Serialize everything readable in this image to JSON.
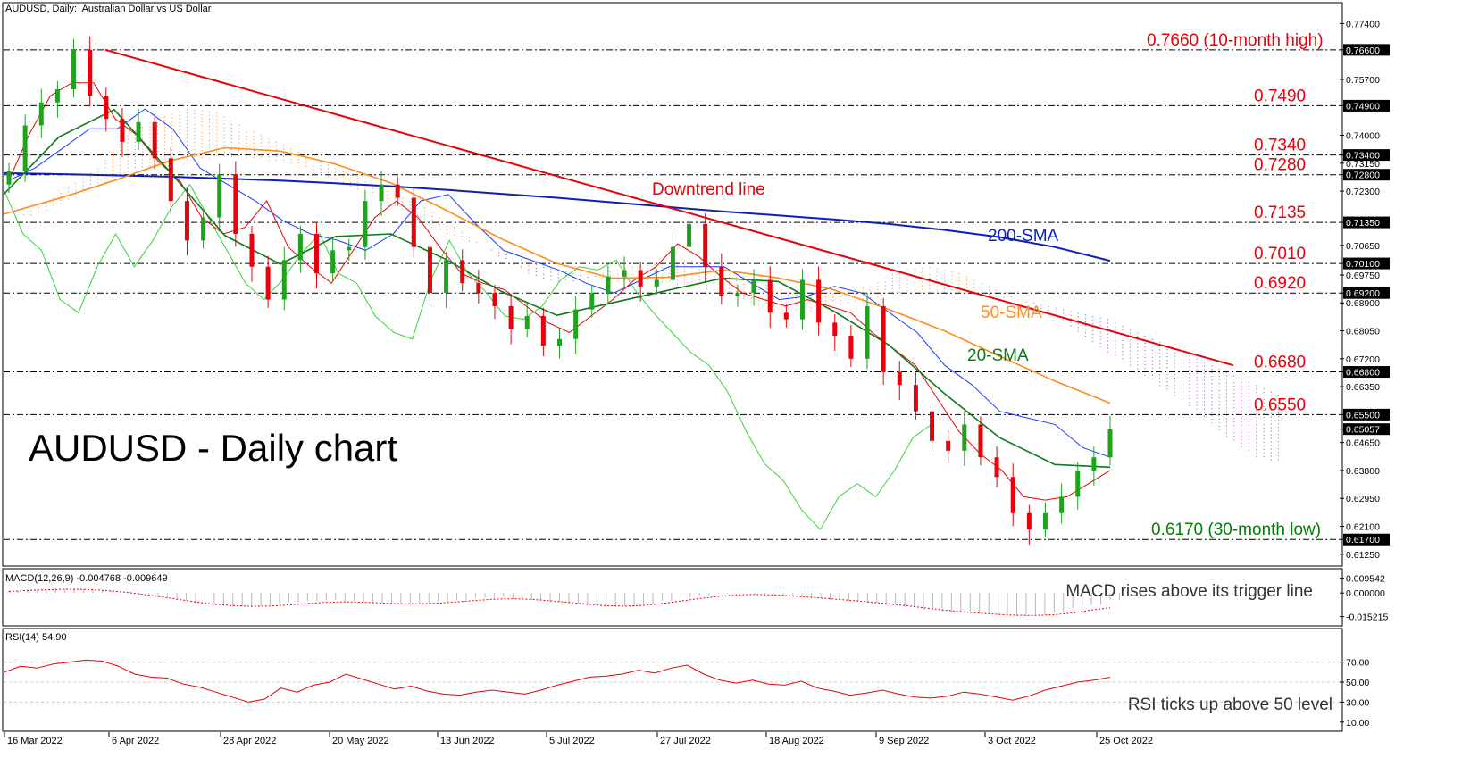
{
  "header": {
    "symbol_line": "AUDUSD, Daily:  Australian Dollar vs US Dollar",
    "big_title": "AUDUSD - Daily chart"
  },
  "chart_data": [
    {
      "type": "line",
      "panel": "price",
      "ylim": [
        0.61,
        0.779
      ],
      "price_ticks": [
        "0.77400",
        "0.76600",
        "0.75700",
        "0.74900",
        "0.74000",
        "0.73400",
        "0.73150",
        "0.72800",
        "0.72300",
        "0.71350",
        "0.70650",
        "0.70100",
        "0.69750",
        "0.69200",
        "0.68900",
        "0.68050",
        "0.67200",
        "0.66800",
        "0.66350",
        "0.65500",
        "0.65057",
        "0.64650",
        "0.63800",
        "0.62950",
        "0.62100",
        "0.61700",
        "0.61250"
      ],
      "highlighted_ticks": [
        "0.76600",
        "0.74900",
        "0.73400",
        "0.72800",
        "0.71350",
        "0.70100",
        "0.69200",
        "0.66800",
        "0.65500",
        "0.65057",
        "0.61700"
      ],
      "date_labels": [
        "16 Mar 2022",
        "6 Apr 2022",
        "28 Apr 2022",
        "20 May 2022",
        "13 Jun 2022",
        "5 Jul 2022",
        "27 Jul 2022",
        "18 Aug 2022",
        "9 Sep 2022",
        "3 Oct 2022",
        "25 Oct 2022"
      ],
      "levels": [
        {
          "value": 0.766,
          "label": "0.7660 (10-month high)",
          "color": "#e8000b"
        },
        {
          "value": 0.749,
          "label": "0.7490",
          "color": "#e8000b"
        },
        {
          "value": 0.734,
          "label": "0.7340",
          "color": "#e8000b"
        },
        {
          "value": 0.728,
          "label": "0.7280",
          "color": "#e8000b"
        },
        {
          "value": 0.7135,
          "label": "0.7135",
          "color": "#e8000b"
        },
        {
          "value": 0.701,
          "label": "0.7010",
          "color": "#e8000b"
        },
        {
          "value": 0.692,
          "label": "0.6920",
          "color": "#e8000b"
        },
        {
          "value": 0.668,
          "label": "0.6680",
          "color": "#e8000b"
        },
        {
          "value": 0.655,
          "label": "0.6550",
          "color": "#e8000b"
        },
        {
          "value": 0.617,
          "label": "0.6170 (30-month low)",
          "color": "#008000"
        }
      ],
      "annotations": {
        "downtrend": "Downtrend line",
        "sma200": "200-SMA",
        "sma50": "50-SMA",
        "sma20": "20-SMA"
      },
      "current_price": 0.65057,
      "downtrend_line": {
        "start": {
          "date": "6 Apr 2022",
          "value": 0.766
        },
        "end": {
          "value": 0.67
        }
      },
      "sma200": [
        0.7285,
        0.7282,
        0.7278,
        0.7274,
        0.7268,
        0.7262,
        0.7254,
        0.7245,
        0.7234,
        0.7222,
        0.721,
        0.7196,
        0.7182,
        0.7168,
        0.7156,
        0.7144,
        0.713,
        0.7112,
        0.709,
        0.706,
        0.7018
      ],
      "sma50": [
        0.716,
        0.7208,
        0.7262,
        0.7322,
        0.7362,
        0.7352,
        0.7312,
        0.7255,
        0.7172,
        0.7085,
        0.701,
        0.6965,
        0.6968,
        0.699,
        0.6966,
        0.693,
        0.687,
        0.6805,
        0.6728,
        0.6652,
        0.6585
      ],
      "sma20": [
        0.722,
        0.7395,
        0.7478,
        0.729,
        0.7095,
        0.7008,
        0.7092,
        0.71,
        0.7022,
        0.6925,
        0.6852,
        0.689,
        0.6928,
        0.6965,
        0.6955,
        0.6865,
        0.6762,
        0.6615,
        0.648,
        0.6398,
        0.639
      ],
      "candles_close": [
        0.729,
        0.743,
        0.75,
        0.754,
        0.766,
        0.752,
        0.745,
        0.738,
        0.744,
        0.733,
        0.72,
        0.708,
        0.715,
        0.728,
        0.71,
        0.7,
        0.69,
        0.702,
        0.71,
        0.698,
        0.705,
        0.706,
        0.72,
        0.725,
        0.721,
        0.706,
        0.692,
        0.702,
        0.695,
        0.692,
        0.688,
        0.681,
        0.685,
        0.676,
        0.678,
        0.687,
        0.692,
        0.697,
        0.699,
        0.694,
        0.696,
        0.706,
        0.713,
        0.7,
        0.691,
        0.692,
        0.696,
        0.686,
        0.684,
        0.696,
        0.683,
        0.679,
        0.672,
        0.688,
        0.668,
        0.664,
        0.656,
        0.647,
        0.644,
        0.652,
        0.642,
        0.636,
        0.625,
        0.62,
        0.625,
        0.63,
        0.638,
        0.642,
        0.6505
      ]
    },
    {
      "type": "bar",
      "panel": "macd",
      "title": "MACD(12,26,9) -0.004768 -0.009649",
      "ticks": [
        "0.009542",
        "0.000000",
        "-0.015215"
      ],
      "ylim": [
        -0.0172,
        0.0105
      ],
      "annotation": "MACD rises above its trigger line",
      "histogram": [
        0.0015,
        0.0022,
        0.0027,
        0.0028,
        0.0026,
        0.0018,
        0.0006,
        -0.001,
        -0.0028,
        -0.0048,
        -0.0068,
        -0.008,
        -0.0087,
        -0.0085,
        -0.0075,
        -0.006,
        -0.005,
        -0.0046,
        -0.0052,
        -0.0063,
        -0.007,
        -0.0074,
        -0.007,
        -0.006,
        -0.0045,
        -0.0032,
        -0.003,
        -0.0036,
        -0.0048,
        -0.006,
        -0.0072,
        -0.0082,
        -0.009,
        -0.0085,
        -0.007,
        -0.005,
        -0.003,
        -0.0016,
        -0.0005,
        0.0,
        -0.0005,
        -0.0015,
        -0.0025,
        -0.0035,
        -0.0045,
        -0.0055,
        -0.0065,
        -0.0078,
        -0.0092,
        -0.0108,
        -0.012,
        -0.0128,
        -0.0135,
        -0.0142,
        -0.0146,
        -0.014,
        -0.0125,
        -0.01,
        -0.0075,
        -0.0048
      ],
      "signal": [
        0.001,
        0.0016,
        0.0021,
        0.0024,
        0.0023,
        0.0018,
        0.0008,
        -0.0006,
        -0.0022,
        -0.004,
        -0.0058,
        -0.0072,
        -0.0082,
        -0.0086,
        -0.0084,
        -0.0077,
        -0.0068,
        -0.006,
        -0.0057,
        -0.006,
        -0.0065,
        -0.007,
        -0.007,
        -0.0066,
        -0.0058,
        -0.0048,
        -0.004,
        -0.0037,
        -0.0041,
        -0.005,
        -0.0061,
        -0.0072,
        -0.0082,
        -0.0085,
        -0.008,
        -0.0068,
        -0.0052,
        -0.0036,
        -0.0022,
        -0.0012,
        -0.0009,
        -0.0012,
        -0.0019,
        -0.0028,
        -0.0037,
        -0.0047,
        -0.0057,
        -0.0068,
        -0.0081,
        -0.0095,
        -0.0109,
        -0.012,
        -0.013,
        -0.0138,
        -0.0144,
        -0.0145,
        -0.014,
        -0.0128,
        -0.011,
        -0.0096
      ]
    },
    {
      "type": "line",
      "panel": "rsi",
      "title": "RSI(14) 54.90",
      "ticks": [
        "70.00",
        "50.00",
        "30.00",
        "10.00"
      ],
      "ylim": [
        0,
        100
      ],
      "annotation": "RSI ticks up above 50 level",
      "values": [
        60,
        66,
        64,
        68,
        70,
        72,
        71,
        66,
        58,
        55,
        54,
        48,
        45,
        40,
        35,
        30,
        33,
        44,
        40,
        47,
        50,
        58,
        53,
        48,
        43,
        46,
        41,
        38,
        37,
        40,
        42,
        40,
        38,
        42,
        47,
        51,
        55,
        56,
        58,
        62,
        59,
        64,
        67,
        58,
        52,
        49,
        52,
        48,
        47,
        51,
        44,
        41,
        37,
        39,
        42,
        38,
        35,
        34,
        36,
        40,
        38,
        35,
        32,
        36,
        42,
        46,
        50,
        52,
        54.9
      ]
    }
  ],
  "colors": {
    "level_red": "#e8000b",
    "level_green": "#008000",
    "sma200": "#0b1fb8",
    "sma50": "#ff8c1a",
    "sma20": "#0f7a1a",
    "tenkan": "#e8000b",
    "kijun": "#1a3cff",
    "chikou": "#39d339",
    "cloud_up": "#e68a3a",
    "cloud_down": "#9a4bb0",
    "candle_up": "#1fa31f",
    "candle_down": "#e8000b",
    "macd_signal": "#e8000b",
    "macd_hist": "#b8b8b8",
    "rsi_line": "#e8000b"
  }
}
